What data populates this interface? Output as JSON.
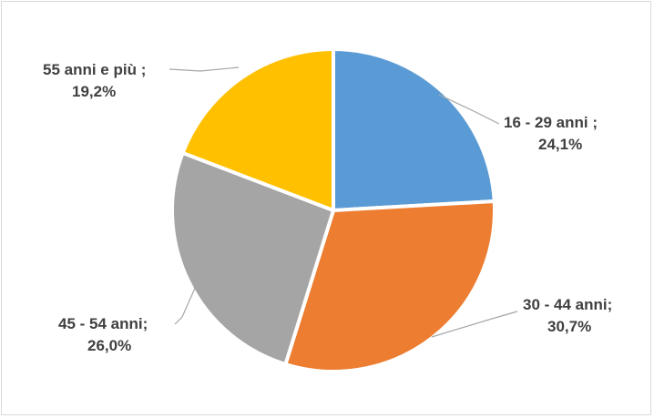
{
  "chart_data": {
    "type": "pie",
    "title": "",
    "series": [
      {
        "name": "",
        "slices": [
          {
            "label": "16 - 29 anni",
            "value": 24.1,
            "display_name": "16 - 29 anni ;",
            "display_value": "24,1%",
            "color": "#5b9bd5"
          },
          {
            "label": "30 - 44 anni",
            "value": 30.7,
            "display_name": "30 - 44 anni;",
            "display_value": "30,7%",
            "color": "#ed7d31"
          },
          {
            "label": "45 - 54 anni",
            "value": 26.0,
            "display_name": "45 - 54 anni;",
            "display_value": "26,0%",
            "color": "#a5a5a5"
          },
          {
            "label": "55 anni e più",
            "value": 19.2,
            "display_name": "55 anni e più ;",
            "display_value": "19,2%",
            "color": "#ffc000"
          }
        ]
      }
    ],
    "legend": "none",
    "data_labels": "outside-with-leader-lines"
  }
}
